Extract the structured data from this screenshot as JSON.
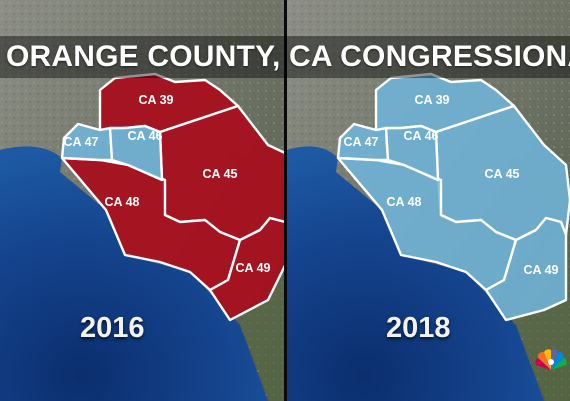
{
  "title": "ORANGE COUNTY, CA CONGRESSIONAL DIS",
  "colors": {
    "republican": "#a80f1e",
    "democrat": "#6fb4d9",
    "border": "#ffffff",
    "ocean": "#143f86"
  },
  "panels": [
    {
      "year": "2016",
      "districts": [
        {
          "label": "CA 39",
          "party": "republican"
        },
        {
          "label": "CA 47",
          "party": "democrat"
        },
        {
          "label": "CA 46",
          "party": "democrat"
        },
        {
          "label": "CA 45",
          "party": "republican"
        },
        {
          "label": "CA 48",
          "party": "republican"
        },
        {
          "label": "CA 49",
          "party": "republican"
        }
      ]
    },
    {
      "year": "2018",
      "districts": [
        {
          "label": "CA 39",
          "party": "democrat"
        },
        {
          "label": "CA 47",
          "party": "democrat"
        },
        {
          "label": "CA 46",
          "party": "democrat"
        },
        {
          "label": "CA 45",
          "party": "democrat"
        },
        {
          "label": "CA 48",
          "party": "democrat"
        },
        {
          "label": "CA 49",
          "party": "democrat"
        }
      ]
    }
  ],
  "logo": {
    "icon": "peacock-logo-icon"
  }
}
